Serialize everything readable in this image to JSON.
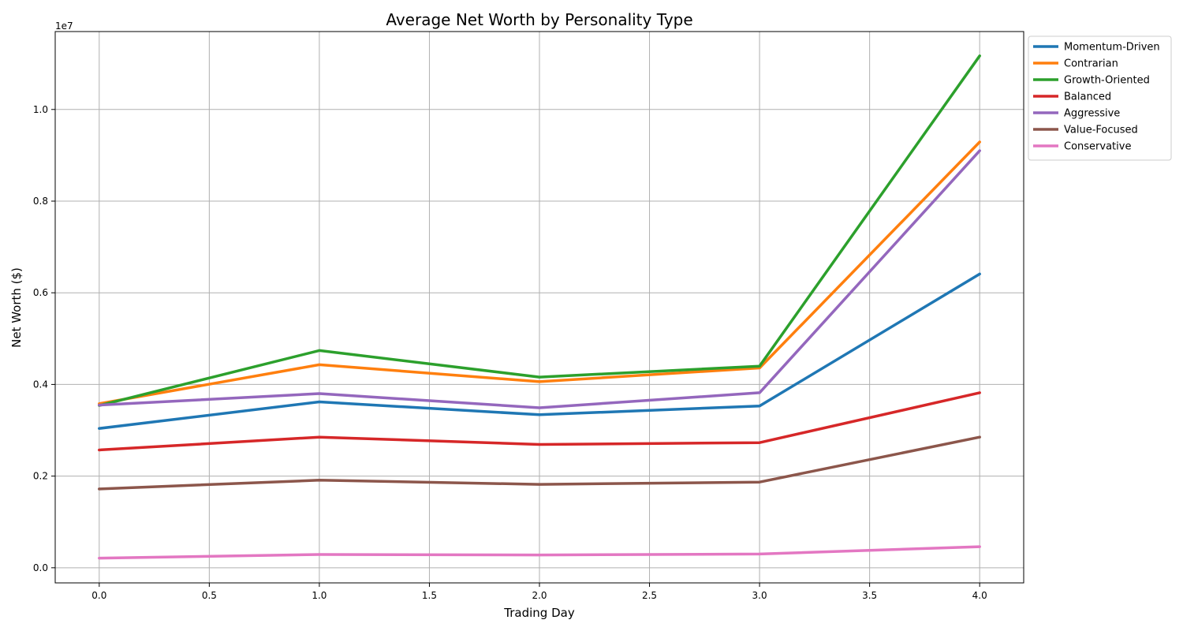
{
  "chart_data": {
    "type": "line",
    "title": "Average Net Worth by Personality Type",
    "xlabel": "Trading Day",
    "ylabel": "Net Worth ($)",
    "y_offset_label": "1e7",
    "xlim": [
      -0.2,
      4.2
    ],
    "ylim": [
      -330000,
      11700000
    ],
    "x": [
      0,
      1,
      2,
      3,
      4
    ],
    "x_ticks": [
      0.0,
      0.5,
      1.0,
      1.5,
      2.0,
      2.5,
      3.0,
      3.5,
      4.0
    ],
    "x_tick_labels": [
      "0.0",
      "0.5",
      "1.0",
      "1.5",
      "2.0",
      "2.5",
      "3.0",
      "3.5",
      "4.0"
    ],
    "y_ticks": [
      0,
      2000000,
      4000000,
      6000000,
      8000000,
      10000000
    ],
    "y_tick_labels": [
      "0.0",
      "0.2",
      "0.4",
      "0.6",
      "0.8",
      "1.0"
    ],
    "grid": true,
    "legend_position": "outside-top-right",
    "series": [
      {
        "name": "Momentum-Driven",
        "color": "#1f77b4",
        "values": [
          3040000,
          3620000,
          3340000,
          3530000,
          6410000
        ]
      },
      {
        "name": "Contrarian",
        "color": "#ff7f0e",
        "values": [
          3580000,
          4430000,
          4060000,
          4360000,
          9290000
        ]
      },
      {
        "name": "Growth-Oriented",
        "color": "#2ca02c",
        "values": [
          3540000,
          4740000,
          4160000,
          4400000,
          11170000
        ]
      },
      {
        "name": "Balanced",
        "color": "#d62728",
        "values": [
          2570000,
          2850000,
          2690000,
          2730000,
          3820000
        ]
      },
      {
        "name": "Aggressive",
        "color": "#9467bd",
        "values": [
          3550000,
          3800000,
          3490000,
          3820000,
          9100000
        ]
      },
      {
        "name": "Value-Focused",
        "color": "#8c564b",
        "values": [
          1720000,
          1910000,
          1820000,
          1870000,
          2850000
        ]
      },
      {
        "name": "Conservative",
        "color": "#e377c2",
        "values": [
          210000,
          290000,
          280000,
          300000,
          460000
        ]
      }
    ]
  }
}
